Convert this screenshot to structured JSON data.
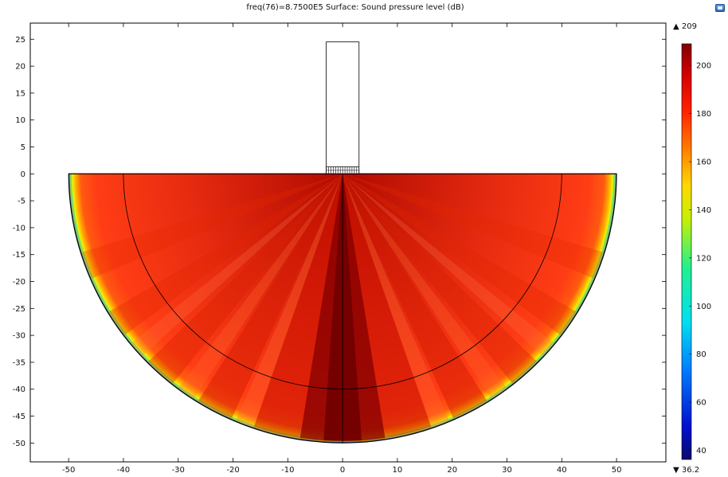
{
  "title": "freq(76)=8.7500E5   Surface: Sound pressure level (dB)",
  "colors": {
    "outline": "#000000",
    "background": "#ffffff",
    "field_max": "#8b0000",
    "field_mid": "#ff3a14",
    "field_edge": "#ffee00"
  },
  "toolbar_icon": "window-icon",
  "chart_data": {
    "type": "heatmap",
    "title": "freq(76)=8.7500E5   Surface: Sound pressure level (dB)",
    "xlabel": "",
    "ylabel": "",
    "xlim": [
      -57,
      59
    ],
    "ylim": [
      -53.5,
      28
    ],
    "x_ticks": [
      -50,
      -40,
      -30,
      -20,
      -10,
      0,
      10,
      20,
      30,
      40,
      50
    ],
    "y_ticks": [
      25,
      20,
      15,
      10,
      5,
      0,
      -5,
      -10,
      -15,
      -20,
      -25,
      -30,
      -35,
      -40,
      -45,
      -50
    ],
    "grid": false,
    "geometry": {
      "outer_radius": 50,
      "inner_radius": 40,
      "transducer": {
        "x_min": -3,
        "x_max": 3,
        "y_min": 0,
        "y_max": 24.5
      }
    },
    "colorbar": {
      "label": "Sound pressure level (dB)",
      "min": 36.2,
      "max": 209,
      "min_label": "▼ 36.2",
      "max_label": "▲ 209",
      "ticks": [
        40,
        60,
        80,
        100,
        120,
        140,
        160,
        180,
        200
      ],
      "colormap": "rainbow"
    }
  }
}
